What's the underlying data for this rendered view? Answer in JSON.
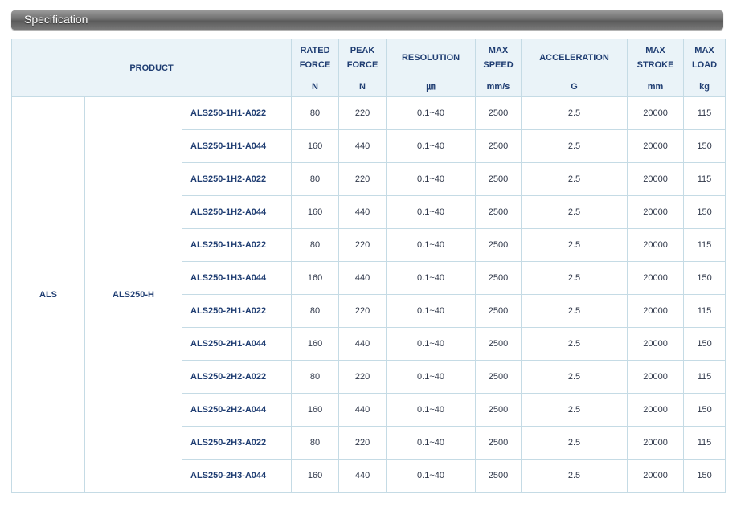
{
  "section_title": "Specification",
  "headers": {
    "product": "PRODUCT",
    "rated_force": [
      "RATED",
      "FORCE"
    ],
    "peak_force": [
      "PEAK",
      "FORCE"
    ],
    "resolution": "RESOLUTION",
    "max_speed": [
      "MAX",
      "SPEED"
    ],
    "acceleration": "ACCELERATION",
    "max_stroke": [
      "MAX",
      "STROKE"
    ],
    "max_load": [
      "MAX",
      "LOAD"
    ]
  },
  "units": [
    "N",
    "N",
    "㎛",
    "mm/s",
    "G",
    "mm",
    "kg"
  ],
  "group": "ALS",
  "subgroup": "ALS250-H",
  "rows": [
    {
      "model": "ALS250-1H1-A022",
      "rated": "80",
      "peak": "220",
      "resolution": "0.1~40",
      "speed": "2500",
      "accel": "2.5",
      "stroke": "20000",
      "load": "115"
    },
    {
      "model": "ALS250-1H1-A044",
      "rated": "160",
      "peak": "440",
      "resolution": "0.1~40",
      "speed": "2500",
      "accel": "2.5",
      "stroke": "20000",
      "load": "150"
    },
    {
      "model": "ALS250-1H2-A022",
      "rated": "80",
      "peak": "220",
      "resolution": "0.1~40",
      "speed": "2500",
      "accel": "2.5",
      "stroke": "20000",
      "load": "115"
    },
    {
      "model": "ALS250-1H2-A044",
      "rated": "160",
      "peak": "440",
      "resolution": "0.1~40",
      "speed": "2500",
      "accel": "2.5",
      "stroke": "20000",
      "load": "150"
    },
    {
      "model": "ALS250-1H3-A022",
      "rated": "80",
      "peak": "220",
      "resolution": "0.1~40",
      "speed": "2500",
      "accel": "2.5",
      "stroke": "20000",
      "load": "115"
    },
    {
      "model": "ALS250-1H3-A044",
      "rated": "160",
      "peak": "440",
      "resolution": "0.1~40",
      "speed": "2500",
      "accel": "2.5",
      "stroke": "20000",
      "load": "150"
    },
    {
      "model": "ALS250-2H1-A022",
      "rated": "80",
      "peak": "220",
      "resolution": "0.1~40",
      "speed": "2500",
      "accel": "2.5",
      "stroke": "20000",
      "load": "115"
    },
    {
      "model": "ALS250-2H1-A044",
      "rated": "160",
      "peak": "440",
      "resolution": "0.1~40",
      "speed": "2500",
      "accel": "2.5",
      "stroke": "20000",
      "load": "150"
    },
    {
      "model": "ALS250-2H2-A022",
      "rated": "80",
      "peak": "220",
      "resolution": "0.1~40",
      "speed": "2500",
      "accel": "2.5",
      "stroke": "20000",
      "load": "115"
    },
    {
      "model": "ALS250-2H2-A044",
      "rated": "160",
      "peak": "440",
      "resolution": "0.1~40",
      "speed": "2500",
      "accel": "2.5",
      "stroke": "20000",
      "load": "150"
    },
    {
      "model": "ALS250-2H3-A022",
      "rated": "80",
      "peak": "220",
      "resolution": "0.1~40",
      "speed": "2500",
      "accel": "2.5",
      "stroke": "20000",
      "load": "115"
    },
    {
      "model": "ALS250-2H3-A044",
      "rated": "160",
      "peak": "440",
      "resolution": "0.1~40",
      "speed": "2500",
      "accel": "2.5",
      "stroke": "20000",
      "load": "150"
    }
  ]
}
